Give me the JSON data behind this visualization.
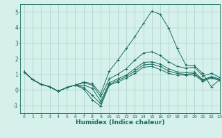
{
  "title": "",
  "xlabel": "Humidex (Indice chaleur)",
  "xlim": [
    -0.5,
    23
  ],
  "ylim": [
    -1.5,
    5.5
  ],
  "yticks": [
    -1,
    0,
    1,
    2,
    3,
    4,
    5
  ],
  "xticks": [
    0,
    1,
    2,
    3,
    4,
    5,
    6,
    7,
    8,
    9,
    10,
    11,
    12,
    13,
    14,
    15,
    16,
    17,
    18,
    19,
    20,
    21,
    22,
    23
  ],
  "bg_color": "#d6f0eb",
  "grid_color": "#aacfc9",
  "line_color": "#1a6b5e",
  "lines": [
    [
      1.15,
      0.65,
      0.35,
      0.2,
      -0.1,
      0.15,
      0.3,
      0.15,
      -0.35,
      -0.9,
      0.35,
      0.6,
      0.85,
      1.2,
      1.6,
      1.65,
      1.5,
      1.2,
      1.05,
      1.0,
      1.05,
      0.6,
      0.8,
      0.65
    ],
    [
      1.15,
      0.65,
      0.35,
      0.2,
      -0.1,
      0.15,
      0.3,
      0.05,
      -0.65,
      -1.05,
      0.3,
      0.5,
      0.75,
      1.05,
      1.45,
      1.5,
      1.3,
      1.05,
      0.95,
      0.95,
      0.95,
      0.55,
      0.75,
      0.6
    ],
    [
      1.15,
      0.65,
      0.35,
      0.2,
      -0.1,
      0.15,
      0.3,
      0.3,
      0.1,
      -0.75,
      0.45,
      0.7,
      0.95,
      1.35,
      1.75,
      1.8,
      1.65,
      1.35,
      1.15,
      1.1,
      1.15,
      0.65,
      0.85,
      0.7
    ],
    [
      1.15,
      0.65,
      0.35,
      0.2,
      -0.1,
      0.15,
      0.3,
      0.45,
      0.3,
      -0.45,
      0.7,
      1.0,
      1.35,
      1.9,
      2.35,
      2.45,
      2.2,
      1.8,
      1.5,
      1.4,
      1.45,
      0.9,
      1.05,
      0.8
    ],
    [
      1.15,
      0.65,
      0.35,
      0.2,
      -0.1,
      0.15,
      0.3,
      0.5,
      0.4,
      -0.25,
      1.2,
      1.9,
      2.65,
      3.4,
      4.25,
      5.05,
      4.85,
      3.95,
      2.65,
      1.6,
      1.55,
      1.05,
      0.2,
      0.65
    ]
  ]
}
